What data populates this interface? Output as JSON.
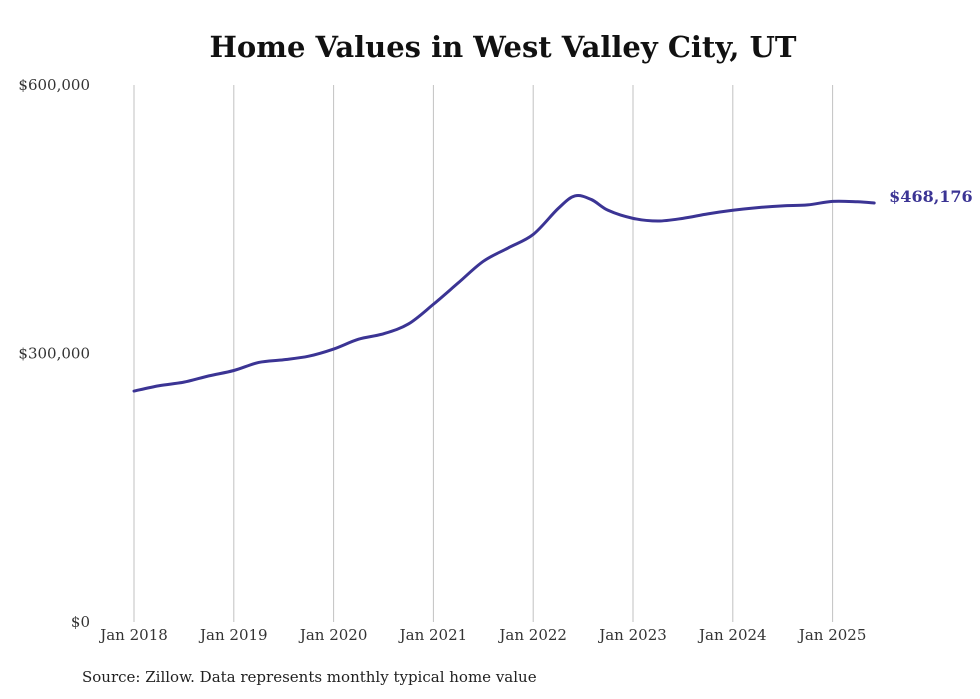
{
  "colors": {
    "line": "#3b3494",
    "grid": "#c2c2c2",
    "background": "#ffffff",
    "text": "#333333"
  },
  "source": "Source: Zillow. Data represents monthly typical home value",
  "chart_data": {
    "type": "line",
    "title": "Home Values in West Valley City, UT",
    "xlabel": "",
    "ylabel": "",
    "ylim": [
      0,
      600000
    ],
    "y_ticks": [
      {
        "value": 0,
        "label": "$0"
      },
      {
        "value": 300000,
        "label": "$300,000"
      },
      {
        "value": 600000,
        "label": "$600,000"
      }
    ],
    "x_ticks": [
      {
        "value": "2018-01",
        "label": "Jan 2018"
      },
      {
        "value": "2019-01",
        "label": "Jan 2019"
      },
      {
        "value": "2020-01",
        "label": "Jan 2020"
      },
      {
        "value": "2021-01",
        "label": "Jan 2021"
      },
      {
        "value": "2022-01",
        "label": "Jan 2022"
      },
      {
        "value": "2023-01",
        "label": "Jan 2023"
      },
      {
        "value": "2024-01",
        "label": "Jan 2024"
      },
      {
        "value": "2025-01",
        "label": "Jan 2025"
      }
    ],
    "xlim": [
      "2018-01",
      "2025-06"
    ],
    "grid": {
      "vertical": true,
      "horizontal": false
    },
    "end_label": "$468,176",
    "series": [
      {
        "points": [
          [
            "2018-01",
            258000
          ],
          [
            "2018-04",
            264000
          ],
          [
            "2018-07",
            268000
          ],
          [
            "2018-10",
            275000
          ],
          [
            "2019-01",
            281000
          ],
          [
            "2019-04",
            290000
          ],
          [
            "2019-07",
            293000
          ],
          [
            "2019-10",
            297000
          ],
          [
            "2020-01",
            305000
          ],
          [
            "2020-04",
            316000
          ],
          [
            "2020-07",
            322000
          ],
          [
            "2020-10",
            333000
          ],
          [
            "2021-01",
            355000
          ],
          [
            "2021-04",
            379000
          ],
          [
            "2021-07",
            403000
          ],
          [
            "2021-10",
            418000
          ],
          [
            "2022-01",
            433000
          ],
          [
            "2022-04",
            462000
          ],
          [
            "2022-06",
            476000
          ],
          [
            "2022-08",
            472000
          ],
          [
            "2022-10",
            460000
          ],
          [
            "2023-01",
            451000
          ],
          [
            "2023-04",
            448000
          ],
          [
            "2023-07",
            451000
          ],
          [
            "2023-10",
            456000
          ],
          [
            "2024-01",
            460000
          ],
          [
            "2024-04",
            463000
          ],
          [
            "2024-07",
            465000
          ],
          [
            "2024-10",
            466000
          ],
          [
            "2025-01",
            470000
          ],
          [
            "2025-04",
            469500
          ],
          [
            "2025-06",
            468176
          ]
        ]
      }
    ]
  }
}
